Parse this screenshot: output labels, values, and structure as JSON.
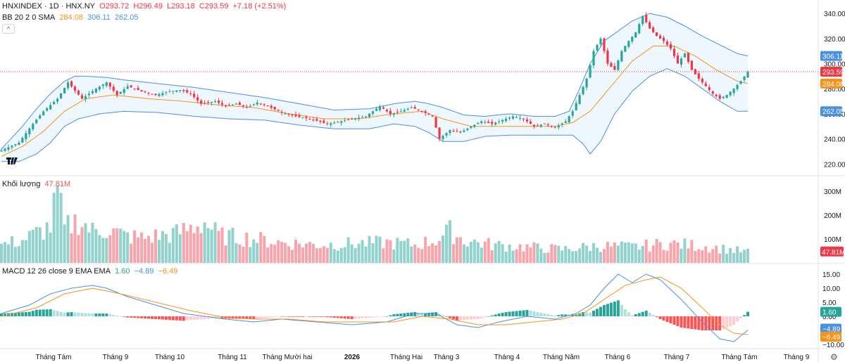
{
  "header": {
    "symbol": "HNXINDEX · 1D · HNX.NY",
    "open": "O293.72",
    "high": "H296.49",
    "low": "L293.18",
    "close": "C293.59",
    "change": "+7.18 (+2.51%)"
  },
  "bb_legend": {
    "label": "BB 20 2 0 SMA",
    "basis": "284.08",
    "upper": "306.11",
    "lower": "262.05"
  },
  "volume_legend": {
    "label": "Khối lượng",
    "value": "47.81M"
  },
  "macd_legend": {
    "label": "MACD 12 26 close 9 EMA EMA",
    "hist": "1.60",
    "macd": "−4.89",
    "signal": "−6.49"
  },
  "colors": {
    "up": "#26a69a",
    "down": "#f23645",
    "basis": "#f7931a",
    "band": "#4a90e2",
    "macd": "#4a90e2",
    "signal": "#f7931a"
  },
  "chart_data": {
    "type": "candlestick",
    "x_labels": [
      "Tháng Tám",
      "Tháng 9",
      "Tháng 10",
      "Tháng 11",
      "Tháng Mười hai",
      "2026",
      "Tháng Hai",
      "Tháng 3",
      "Tháng 4",
      "Tháng Năm",
      "Tháng 6",
      "Tháng 7",
      "Tháng Tám",
      "Tháng 9"
    ],
    "price_axis": {
      "ticks": [
        220,
        240,
        260,
        280,
        300,
        320,
        340
      ],
      "ylim": [
        214,
        344
      ]
    },
    "price_badges": [
      {
        "label": "306.11",
        "value": 306.11,
        "color": "#4a90e2"
      },
      {
        "label": "293.59",
        "value": 293.59,
        "color": "#f23645"
      },
      {
        "label": "284.08",
        "value": 284.08,
        "color": "#f7931a"
      },
      {
        "label": "262.05",
        "value": 262.05,
        "color": "#4a90e2"
      }
    ],
    "close_path": [
      [
        0,
        231
      ],
      [
        5,
        237
      ],
      [
        9,
        252
      ],
      [
        12,
        262
      ],
      [
        16,
        272
      ],
      [
        19,
        285
      ],
      [
        23,
        272
      ],
      [
        27,
        280
      ],
      [
        30,
        285
      ],
      [
        33,
        275
      ],
      [
        36,
        282
      ],
      [
        40,
        278
      ],
      [
        44,
        275
      ],
      [
        48,
        278
      ],
      [
        51,
        279
      ],
      [
        54,
        276
      ],
      [
        57,
        268
      ],
      [
        61,
        270
      ],
      [
        64,
        266
      ],
      [
        67,
        268
      ],
      [
        70,
        265
      ],
      [
        73,
        269
      ],
      [
        76,
        266
      ],
      [
        80,
        261
      ],
      [
        84,
        258
      ],
      [
        88,
        256
      ],
      [
        93,
        252
      ],
      [
        97,
        254
      ],
      [
        100,
        256
      ],
      [
        104,
        258
      ],
      [
        108,
        266
      ],
      [
        111,
        260
      ],
      [
        114,
        262
      ],
      [
        117,
        265
      ],
      [
        120,
        262
      ],
      [
        123,
        258
      ],
      [
        125,
        240
      ],
      [
        128,
        247
      ],
      [
        131,
        245
      ],
      [
        134,
        250
      ],
      [
        137,
        254
      ],
      [
        140,
        252
      ],
      [
        143,
        255
      ],
      [
        146,
        258
      ],
      [
        149,
        256
      ],
      [
        152,
        250
      ],
      [
        155,
        252
      ],
      [
        158,
        249
      ],
      [
        161,
        254
      ],
      [
        163,
        262
      ],
      [
        165,
        275
      ],
      [
        167,
        288
      ],
      [
        169,
        310
      ],
      [
        171,
        320
      ],
      [
        173,
        300
      ],
      [
        175,
        295
      ],
      [
        177,
        310
      ],
      [
        179,
        318
      ],
      [
        181,
        325
      ],
      [
        183,
        338
      ],
      [
        185,
        328
      ],
      [
        187,
        322
      ],
      [
        189,
        318
      ],
      [
        191,
        312
      ],
      [
        193,
        300
      ],
      [
        195,
        308
      ],
      [
        197,
        295
      ],
      [
        199,
        288
      ],
      [
        201,
        282
      ],
      [
        203,
        276
      ],
      [
        205,
        272
      ],
      [
        207,
        275
      ],
      [
        209,
        280
      ],
      [
        211,
        286
      ],
      [
        213,
        293.59
      ]
    ],
    "upper_band": [
      [
        0,
        232
      ],
      [
        6,
        250
      ],
      [
        10,
        264
      ],
      [
        14,
        276
      ],
      [
        18,
        286
      ],
      [
        21,
        290
      ],
      [
        24,
        290
      ],
      [
        30,
        289
      ],
      [
        35,
        287
      ],
      [
        45,
        284
      ],
      [
        55,
        281
      ],
      [
        65,
        277
      ],
      [
        75,
        273
      ],
      [
        85,
        268
      ],
      [
        95,
        263
      ],
      [
        105,
        264
      ],
      [
        112,
        268
      ],
      [
        118,
        270
      ],
      [
        122,
        268
      ],
      [
        126,
        265
      ],
      [
        132,
        259
      ],
      [
        138,
        258
      ],
      [
        145,
        260
      ],
      [
        152,
        258
      ],
      [
        158,
        258
      ],
      [
        162,
        262
      ],
      [
        165,
        280
      ],
      [
        168,
        300
      ],
      [
        172,
        318
      ],
      [
        176,
        326
      ],
      [
        180,
        334
      ],
      [
        185,
        340
      ],
      [
        190,
        337
      ],
      [
        195,
        330
      ],
      [
        200,
        322
      ],
      [
        205,
        315
      ],
      [
        210,
        308
      ],
      [
        213,
        306.11
      ]
    ],
    "lower_band": [
      [
        0,
        222
      ],
      [
        5,
        222
      ],
      [
        10,
        228
      ],
      [
        14,
        237
      ],
      [
        18,
        250
      ],
      [
        22,
        256
      ],
      [
        28,
        260
      ],
      [
        35,
        262
      ],
      [
        45,
        261
      ],
      [
        55,
        258
      ],
      [
        65,
        256
      ],
      [
        75,
        255
      ],
      [
        85,
        251
      ],
      [
        95,
        248
      ],
      [
        105,
        248
      ],
      [
        112,
        252
      ],
      [
        118,
        250
      ],
      [
        122,
        245
      ],
      [
        126,
        238
      ],
      [
        132,
        238
      ],
      [
        138,
        242
      ],
      [
        145,
        243
      ],
      [
        152,
        243
      ],
      [
        158,
        243
      ],
      [
        163,
        243
      ],
      [
        166,
        236
      ],
      [
        168,
        228
      ],
      [
        171,
        238
      ],
      [
        175,
        260
      ],
      [
        180,
        278
      ],
      [
        185,
        290
      ],
      [
        190,
        296
      ],
      [
        195,
        290
      ],
      [
        200,
        280
      ],
      [
        205,
        270
      ],
      [
        210,
        262
      ],
      [
        213,
        262.05
      ]
    ],
    "basis": [
      [
        0,
        226
      ],
      [
        6,
        234
      ],
      [
        12,
        246
      ],
      [
        18,
        262
      ],
      [
        24,
        272
      ],
      [
        32,
        275
      ],
      [
        42,
        272
      ],
      [
        52,
        270
      ],
      [
        62,
        267
      ],
      [
        72,
        265
      ],
      [
        82,
        260
      ],
      [
        92,
        256
      ],
      [
        102,
        256
      ],
      [
        112,
        260
      ],
      [
        120,
        262
      ],
      [
        126,
        256
      ],
      [
        134,
        250
      ],
      [
        142,
        250
      ],
      [
        150,
        250
      ],
      [
        158,
        250
      ],
      [
        163,
        253
      ],
      [
        168,
        262
      ],
      [
        174,
        282
      ],
      [
        180,
        302
      ],
      [
        186,
        314
      ],
      [
        192,
        314
      ],
      [
        198,
        306
      ],
      [
        204,
        295
      ],
      [
        210,
        286
      ],
      [
        213,
        284.08
      ]
    ],
    "volume_axis": {
      "ticks": [
        100,
        200,
        300
      ],
      "tick_labels": [
        "100M",
        "200M",
        "300M"
      ],
      "ylim": [
        0,
        330
      ]
    },
    "volume_path": [
      [
        0,
        80
      ],
      [
        6,
        100
      ],
      [
        10,
        130
      ],
      [
        14,
        160
      ],
      [
        16,
        310
      ],
      [
        18,
        150
      ],
      [
        22,
        190
      ],
      [
        26,
        140
      ],
      [
        30,
        150
      ],
      [
        35,
        120
      ],
      [
        40,
        110
      ],
      [
        50,
        130
      ],
      [
        58,
        180
      ],
      [
        62,
        120
      ],
      [
        70,
        110
      ],
      [
        80,
        90
      ],
      [
        90,
        80
      ],
      [
        100,
        85
      ],
      [
        110,
        90
      ],
      [
        118,
        80
      ],
      [
        124,
        100
      ],
      [
        128,
        140
      ],
      [
        132,
        100
      ],
      [
        140,
        80
      ],
      [
        150,
        70
      ],
      [
        160,
        60
      ],
      [
        170,
        75
      ],
      [
        180,
        70
      ],
      [
        190,
        85
      ],
      [
        200,
        75
      ],
      [
        213,
        47.81
      ]
    ],
    "volume_last_label": "47.81M",
    "macd_axis": {
      "ticks": [
        -10,
        -5,
        0,
        5,
        10,
        15
      ],
      "tick_labels": [
        "−10.00",
        "−5.00",
        "0.00",
        "5.00",
        "10.00",
        "15.00"
      ],
      "ylim": [
        -11,
        17
      ]
    },
    "macd_path": [
      [
        0,
        1
      ],
      [
        8,
        4
      ],
      [
        14,
        8
      ],
      [
        20,
        10
      ],
      [
        26,
        11
      ],
      [
        30,
        10
      ],
      [
        36,
        7
      ],
      [
        44,
        4
      ],
      [
        52,
        1
      ],
      [
        58,
        0
      ],
      [
        64,
        -1
      ],
      [
        72,
        -2
      ],
      [
        80,
        -1
      ],
      [
        90,
        -2
      ],
      [
        100,
        -3
      ],
      [
        110,
        -2
      ],
      [
        118,
        1
      ],
      [
        124,
        1
      ],
      [
        130,
        -3
      ],
      [
        136,
        -4
      ],
      [
        142,
        -2
      ],
      [
        150,
        0
      ],
      [
        158,
        -1
      ],
      [
        164,
        1
      ],
      [
        168,
        4
      ],
      [
        172,
        10
      ],
      [
        176,
        15
      ],
      [
        180,
        12
      ],
      [
        184,
        15
      ],
      [
        188,
        13
      ],
      [
        194,
        6
      ],
      [
        200,
        -2
      ],
      [
        205,
        -8
      ],
      [
        209,
        -9
      ],
      [
        213,
        -4.89
      ]
    ],
    "signal_path": [
      [
        0,
        0
      ],
      [
        10,
        3
      ],
      [
        18,
        8
      ],
      [
        26,
        10
      ],
      [
        34,
        8
      ],
      [
        44,
        5
      ],
      [
        54,
        2
      ],
      [
        62,
        0
      ],
      [
        72,
        -1
      ],
      [
        82,
        -1
      ],
      [
        92,
        -2
      ],
      [
        102,
        -2
      ],
      [
        112,
        -2
      ],
      [
        120,
        0
      ],
      [
        128,
        -1
      ],
      [
        136,
        -3
      ],
      [
        144,
        -3
      ],
      [
        152,
        -2
      ],
      [
        160,
        -1
      ],
      [
        166,
        1
      ],
      [
        172,
        6
      ],
      [
        178,
        11
      ],
      [
        184,
        13
      ],
      [
        188,
        14
      ],
      [
        194,
        10
      ],
      [
        200,
        3
      ],
      [
        205,
        -3
      ],
      [
        209,
        -6
      ],
      [
        213,
        -6.49
      ]
    ],
    "macd_badges": [
      {
        "label": "1.60",
        "value": 1.6,
        "color": "#26a69a"
      },
      {
        "label": "−4.89",
        "value": -4.89,
        "color": "#4a90e2"
      },
      {
        "label": "−6.49",
        "value": -6.49,
        "color": "#f7931a"
      }
    ]
  }
}
